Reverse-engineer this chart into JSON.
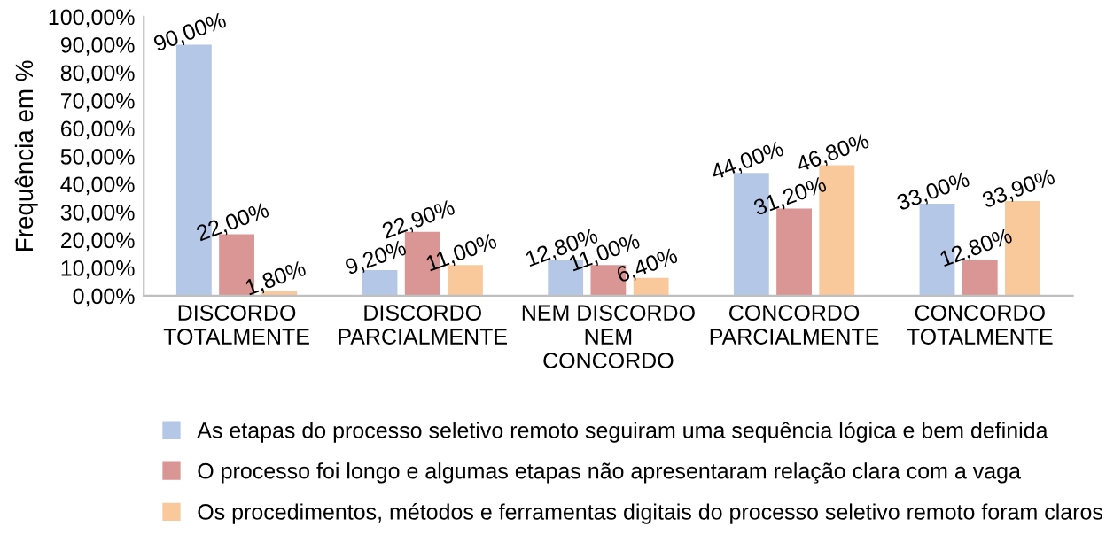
{
  "chart_data": {
    "type": "bar",
    "ylabel": "Frequência em %",
    "categories": [
      "DISCORDO\nTOTALMENTE",
      "DISCORDO\nPARCIALMENTE",
      "NEM DISCORDO\nNEM\nCONCORDO",
      "CONCORDO\nPARCIALMENTE",
      "CONCORDO\nTOTALMENTE"
    ],
    "series": [
      {
        "name": "As etapas do processo seletivo remoto seguiram uma sequência lógica e bem definida",
        "color": "#b4c7e7",
        "values": [
          90,
          9.2,
          12.8,
          44,
          33
        ],
        "value_labels": [
          "90,00%",
          "9,20%",
          "12,80%",
          "44,00%",
          "33,00%"
        ]
      },
      {
        "name": "O processo foi longo e algumas etapas não apresentaram relação clara com a vaga",
        "color": "#d99694",
        "values": [
          22,
          22.9,
          11,
          31.2,
          12.8
        ],
        "value_labels": [
          "22,00%",
          "22,90%",
          "11,00%",
          "31,20%",
          "12,80%"
        ]
      },
      {
        "name": "Os procedimentos, métodos e ferramentas digitais do processo seletivo remoto foram claros",
        "color": "#f9c89b",
        "values": [
          1.8,
          11,
          6.4,
          46.8,
          33.9
        ],
        "value_labels": [
          "1,80%",
          "11,00%",
          "6,40%",
          "46,80%",
          "33,90%"
        ]
      }
    ],
    "ylim": [
      0,
      100
    ],
    "yticks": [
      {
        "value": 0,
        "label": "0,00%"
      },
      {
        "value": 10,
        "label": "10,00%"
      },
      {
        "value": 20,
        "label": "20,00%"
      },
      {
        "value": 30,
        "label": "30,00%"
      },
      {
        "value": 40,
        "label": "40,00%"
      },
      {
        "value": 50,
        "label": "50,00%"
      },
      {
        "value": 60,
        "label": "60,00%"
      },
      {
        "value": 70,
        "label": "70,00%"
      },
      {
        "value": 80,
        "label": "80,00%"
      },
      {
        "value": 90,
        "label": "90,00%"
      },
      {
        "value": 100,
        "label": "100,00%"
      }
    ],
    "grid": false,
    "legend": "bottom"
  }
}
